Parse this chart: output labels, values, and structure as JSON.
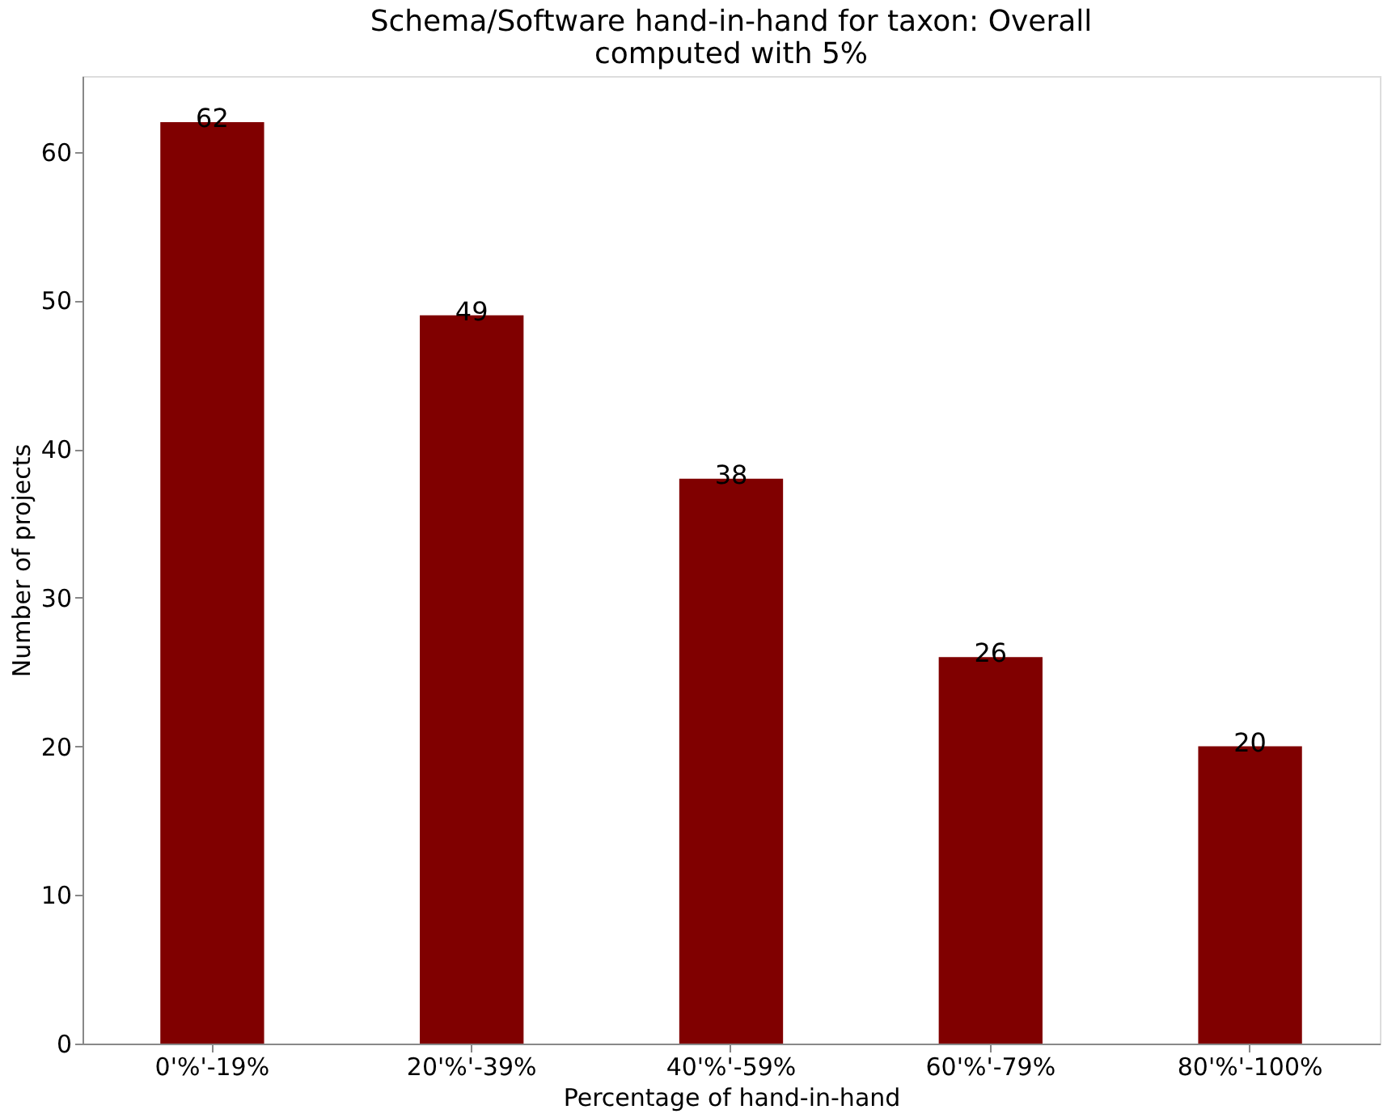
{
  "chart_data": {
    "type": "bar",
    "title": "Schema/Software hand-in-hand for taxon: Overall\ncomputed with 5%",
    "xlabel": "Percentage of hand-in-hand",
    "ylabel": "Number of projects",
    "categories": [
      "0'%'-19%",
      "20'%'-39%",
      "40'%'-59%",
      "60'%'-79%",
      "80'%'-100%"
    ],
    "values": [
      62,
      49,
      38,
      26,
      20
    ],
    "color": "#800000",
    "ylim": [
      0,
      65.1
    ],
    "yticks": [
      0,
      10,
      20,
      30,
      40,
      50,
      60
    ],
    "grid": false,
    "data_labels": true
  }
}
